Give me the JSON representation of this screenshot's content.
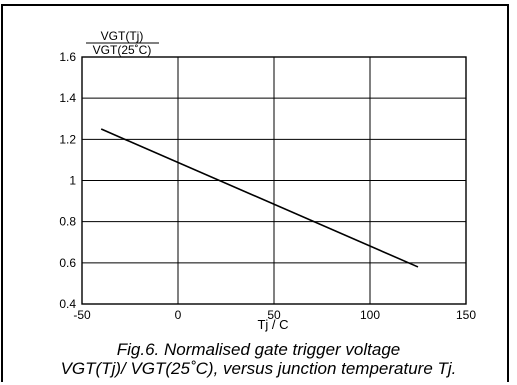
{
  "chart_data": {
    "type": "line",
    "title": "",
    "ylabel_numerator": "VGT(Tj)",
    "ylabel_denominator": "VGT(25˚C)",
    "xlabel": "Tj / C",
    "xlim": [
      -50,
      150
    ],
    "ylim": [
      0.4,
      1.6
    ],
    "x_ticks": [
      "-50",
      "0",
      "50",
      "100",
      "150"
    ],
    "y_ticks": [
      "1.6",
      "1.4",
      "1.2",
      "1",
      "0.8",
      "0.6",
      "0.4"
    ],
    "grid": true,
    "series": [
      {
        "x": [
          -40,
          125
        ],
        "y": [
          1.25,
          0.58
        ]
      }
    ]
  },
  "caption": {
    "line1": "Fig.6.  Normalised gate trigger voltage",
    "line2": "VGT(Tj)/ VGT(25˚C), versus junction temperature Tj."
  }
}
